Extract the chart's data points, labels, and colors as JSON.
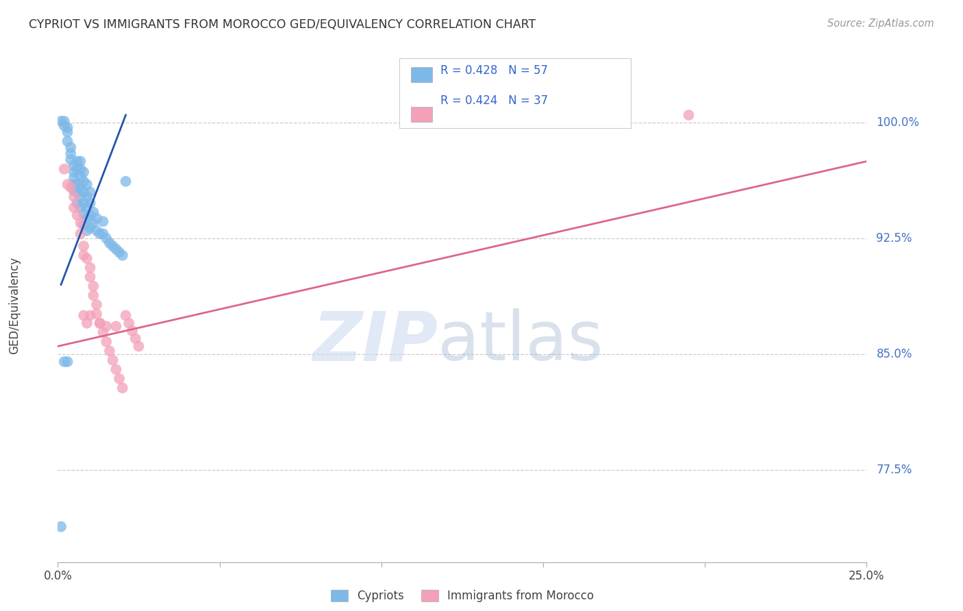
{
  "title": "CYPRIOT VS IMMIGRANTS FROM MOROCCO GED/EQUIVALENCY CORRELATION CHART",
  "source": "Source: ZipAtlas.com",
  "ylabel": "GED/Equivalency",
  "ytick_labels": [
    "100.0%",
    "92.5%",
    "85.0%",
    "77.5%"
  ],
  "ytick_values": [
    1.0,
    0.925,
    0.85,
    0.775
  ],
  "xmin": 0.0,
  "xmax": 0.25,
  "ymin": 0.715,
  "ymax": 1.04,
  "legend_label_blue": "Cypriots",
  "legend_label_pink": "Immigrants from Morocco",
  "blue_color": "#7db8e8",
  "pink_color": "#f4a0b8",
  "blue_line_color": "#2255aa",
  "pink_line_color": "#dd6688",
  "blue_trend_x": [
    0.001,
    0.021
  ],
  "blue_trend_y": [
    0.895,
    1.005
  ],
  "pink_trend_x": [
    0.0,
    0.25
  ],
  "pink_trend_y": [
    0.855,
    0.975
  ],
  "blue_x": [
    0.001,
    0.002,
    0.002,
    0.003,
    0.003,
    0.003,
    0.004,
    0.004,
    0.004,
    0.005,
    0.005,
    0.005,
    0.005,
    0.005,
    0.006,
    0.006,
    0.006,
    0.006,
    0.006,
    0.007,
    0.007,
    0.007,
    0.007,
    0.007,
    0.007,
    0.008,
    0.008,
    0.008,
    0.008,
    0.008,
    0.008,
    0.009,
    0.009,
    0.009,
    0.009,
    0.009,
    0.01,
    0.01,
    0.01,
    0.01,
    0.011,
    0.011,
    0.012,
    0.012,
    0.013,
    0.014,
    0.014,
    0.015,
    0.016,
    0.017,
    0.018,
    0.019,
    0.02,
    0.021,
    0.002,
    0.003,
    0.001
  ],
  "blue_y": [
    1.001,
    1.001,
    0.998,
    0.997,
    0.994,
    0.988,
    0.984,
    0.98,
    0.976,
    0.972,
    0.968,
    0.964,
    0.96,
    0.956,
    0.975,
    0.97,
    0.96,
    0.955,
    0.948,
    0.975,
    0.97,
    0.965,
    0.958,
    0.952,
    0.945,
    0.968,
    0.962,
    0.955,
    0.948,
    0.941,
    0.934,
    0.96,
    0.952,
    0.945,
    0.938,
    0.93,
    0.955,
    0.948,
    0.94,
    0.932,
    0.942,
    0.935,
    0.938,
    0.93,
    0.928,
    0.936,
    0.928,
    0.925,
    0.922,
    0.92,
    0.918,
    0.916,
    0.914,
    0.962,
    0.845,
    0.845,
    0.738
  ],
  "pink_x": [
    0.002,
    0.003,
    0.004,
    0.005,
    0.005,
    0.006,
    0.007,
    0.007,
    0.008,
    0.008,
    0.009,
    0.01,
    0.01,
    0.011,
    0.011,
    0.012,
    0.012,
    0.013,
    0.014,
    0.015,
    0.016,
    0.017,
    0.018,
    0.019,
    0.02,
    0.021,
    0.022,
    0.023,
    0.024,
    0.025,
    0.008,
    0.009,
    0.01,
    0.013,
    0.015,
    0.018,
    0.195
  ],
  "pink_y": [
    0.97,
    0.96,
    0.958,
    0.952,
    0.945,
    0.94,
    0.935,
    0.928,
    0.92,
    0.914,
    0.912,
    0.906,
    0.9,
    0.894,
    0.888,
    0.882,
    0.876,
    0.87,
    0.864,
    0.858,
    0.852,
    0.846,
    0.84,
    0.834,
    0.828,
    0.875,
    0.87,
    0.865,
    0.86,
    0.855,
    0.875,
    0.87,
    0.875,
    0.87,
    0.868,
    0.868,
    1.005
  ]
}
